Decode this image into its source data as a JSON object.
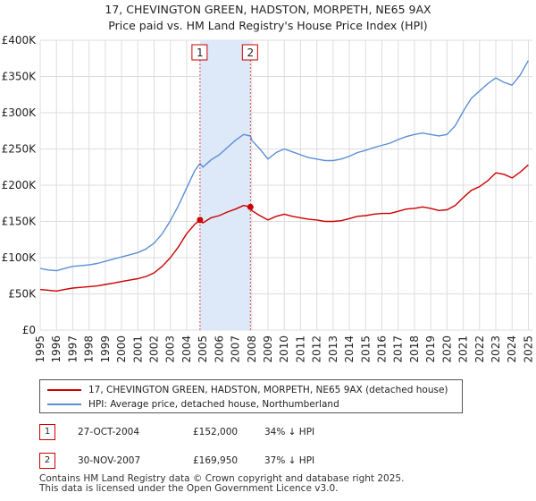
{
  "title_line1": "17, CHEVINGTON GREEN, HADSTON, MORPETH, NE65 9AX",
  "title_line2": "Price paid vs. HM Land Registry's House Price Index (HPI)",
  "colors": {
    "property": "#cc0000",
    "hpi": "#5b8fd6",
    "shade": "#dde8f8",
    "grid": "#dddddd"
  },
  "chart_data": {
    "type": "line",
    "title": "17, CHEVINGTON GREEN, HADSTON, MORPETH, NE65 9AX — Price paid vs. HM Land Registry's House Price Index (HPI)",
    "xlabel": "",
    "ylabel": "",
    "xlim": [
      1995,
      2025.25
    ],
    "ylim": [
      0,
      400000
    ],
    "x_ticks": [
      1995,
      1996,
      1997,
      1998,
      1999,
      2000,
      2001,
      2002,
      2003,
      2004,
      2005,
      2006,
      2007,
      2008,
      2009,
      2010,
      2011,
      2012,
      2013,
      2014,
      2015,
      2016,
      2017,
      2018,
      2019,
      2020,
      2021,
      2022,
      2023,
      2024,
      2025
    ],
    "y_ticks": [
      {
        "value": 0,
        "label": "£0"
      },
      {
        "value": 50000,
        "label": "£50K"
      },
      {
        "value": 100000,
        "label": "£100K"
      },
      {
        "value": 150000,
        "label": "£150K"
      },
      {
        "value": 200000,
        "label": "£200K"
      },
      {
        "value": 250000,
        "label": "£250K"
      },
      {
        "value": 300000,
        "label": "£300K"
      },
      {
        "value": 350000,
        "label": "£350K"
      },
      {
        "value": 400000,
        "label": "£400K"
      }
    ],
    "shaded_region": [
      2004.82,
      2007.92
    ],
    "series": [
      {
        "name": "17, CHEVINGTON GREEN, HADSTON, MORPETH, NE65 9AX (detached house)",
        "x": [
          1995,
          1995.5,
          1996,
          1996.5,
          1997,
          1997.5,
          1998,
          1998.5,
          1999,
          1999.5,
          2000,
          2000.5,
          2001,
          2001.5,
          2002,
          2002.5,
          2003,
          2003.5,
          2004,
          2004.5,
          2004.82,
          2005,
          2005.5,
          2006,
          2006.5,
          2007,
          2007.5,
          2007.92,
          2008,
          2008.5,
          2009,
          2009.5,
          2010,
          2010.5,
          2011,
          2011.5,
          2012,
          2012.5,
          2013,
          2013.5,
          2014,
          2014.5,
          2015,
          2015.5,
          2016,
          2016.5,
          2017,
          2017.5,
          2018,
          2018.5,
          2019,
          2019.5,
          2020,
          2020.5,
          2021,
          2021.5,
          2022,
          2022.5,
          2023,
          2023.5,
          2024,
          2024.5,
          2025
        ],
        "values": [
          56000,
          55000,
          54000,
          56000,
          58000,
          59000,
          60000,
          61000,
          63000,
          65000,
          67000,
          69000,
          71000,
          74000,
          79000,
          88000,
          100000,
          115000,
          133000,
          146000,
          152000,
          148000,
          155000,
          158000,
          163000,
          167000,
          172000,
          169950,
          165000,
          158000,
          152000,
          157000,
          160000,
          157000,
          155000,
          153000,
          152000,
          150000,
          150000,
          151000,
          154000,
          157000,
          158000,
          160000,
          161000,
          161000,
          164000,
          167000,
          168000,
          170000,
          168000,
          165000,
          166000,
          172000,
          183000,
          193000,
          198000,
          206000,
          217000,
          215000,
          210000,
          218000,
          228000
        ]
      },
      {
        "name": "HPI: Average price, detached house, Northumberland",
        "x": [
          1995,
          1995.5,
          1996,
          1996.5,
          1997,
          1997.5,
          1998,
          1998.5,
          1999,
          1999.5,
          2000,
          2000.5,
          2001,
          2001.5,
          2002,
          2002.5,
          2003,
          2003.5,
          2004,
          2004.5,
          2004.82,
          2005,
          2005.5,
          2006,
          2006.5,
          2007,
          2007.5,
          2007.92,
          2008,
          2008.5,
          2009,
          2009.5,
          2010,
          2010.5,
          2011,
          2011.5,
          2012,
          2012.5,
          2013,
          2013.5,
          2014,
          2014.5,
          2015,
          2015.5,
          2016,
          2016.5,
          2017,
          2017.5,
          2018,
          2018.5,
          2019,
          2019.5,
          2020,
          2020.5,
          2021,
          2021.5,
          2022,
          2022.5,
          2023,
          2023.5,
          2024,
          2024.5,
          2025
        ],
        "values": [
          85000,
          83000,
          82000,
          85000,
          88000,
          89000,
          90000,
          92000,
          95000,
          98000,
          101000,
          104000,
          107000,
          112000,
          120000,
          133000,
          151000,
          172000,
          196000,
          220000,
          230000,
          225000,
          235000,
          242000,
          252000,
          262000,
          270000,
          268000,
          262000,
          250000,
          236000,
          245000,
          250000,
          246000,
          242000,
          238000,
          236000,
          234000,
          234000,
          236000,
          240000,
          245000,
          248000,
          252000,
          255000,
          258000,
          263000,
          267000,
          270000,
          272000,
          270000,
          268000,
          270000,
          282000,
          302000,
          320000,
          330000,
          340000,
          348000,
          342000,
          338000,
          352000,
          372000
        ]
      }
    ],
    "annotations": [
      {
        "label": "1",
        "x": 2004.82,
        "value": 152000
      },
      {
        "label": "2",
        "x": 2007.92,
        "value": 169950
      }
    ]
  },
  "legend": {
    "property_label": "17, CHEVINGTON GREEN, HADSTON, MORPETH, NE65 9AX (detached house)",
    "hpi_label": "HPI: Average price, detached house, Northumberland"
  },
  "sales": [
    {
      "num": "1",
      "date": "27-OCT-2004",
      "price": "£152,000",
      "hpi": "34% ↓ HPI"
    },
    {
      "num": "2",
      "date": "30-NOV-2007",
      "price": "£169,950",
      "hpi": "37% ↓ HPI"
    }
  ],
  "footer": {
    "line1": "Contains HM Land Registry data © Crown copyright and database right 2025.",
    "line2": "This data is licensed under the Open Government Licence v3.0."
  }
}
